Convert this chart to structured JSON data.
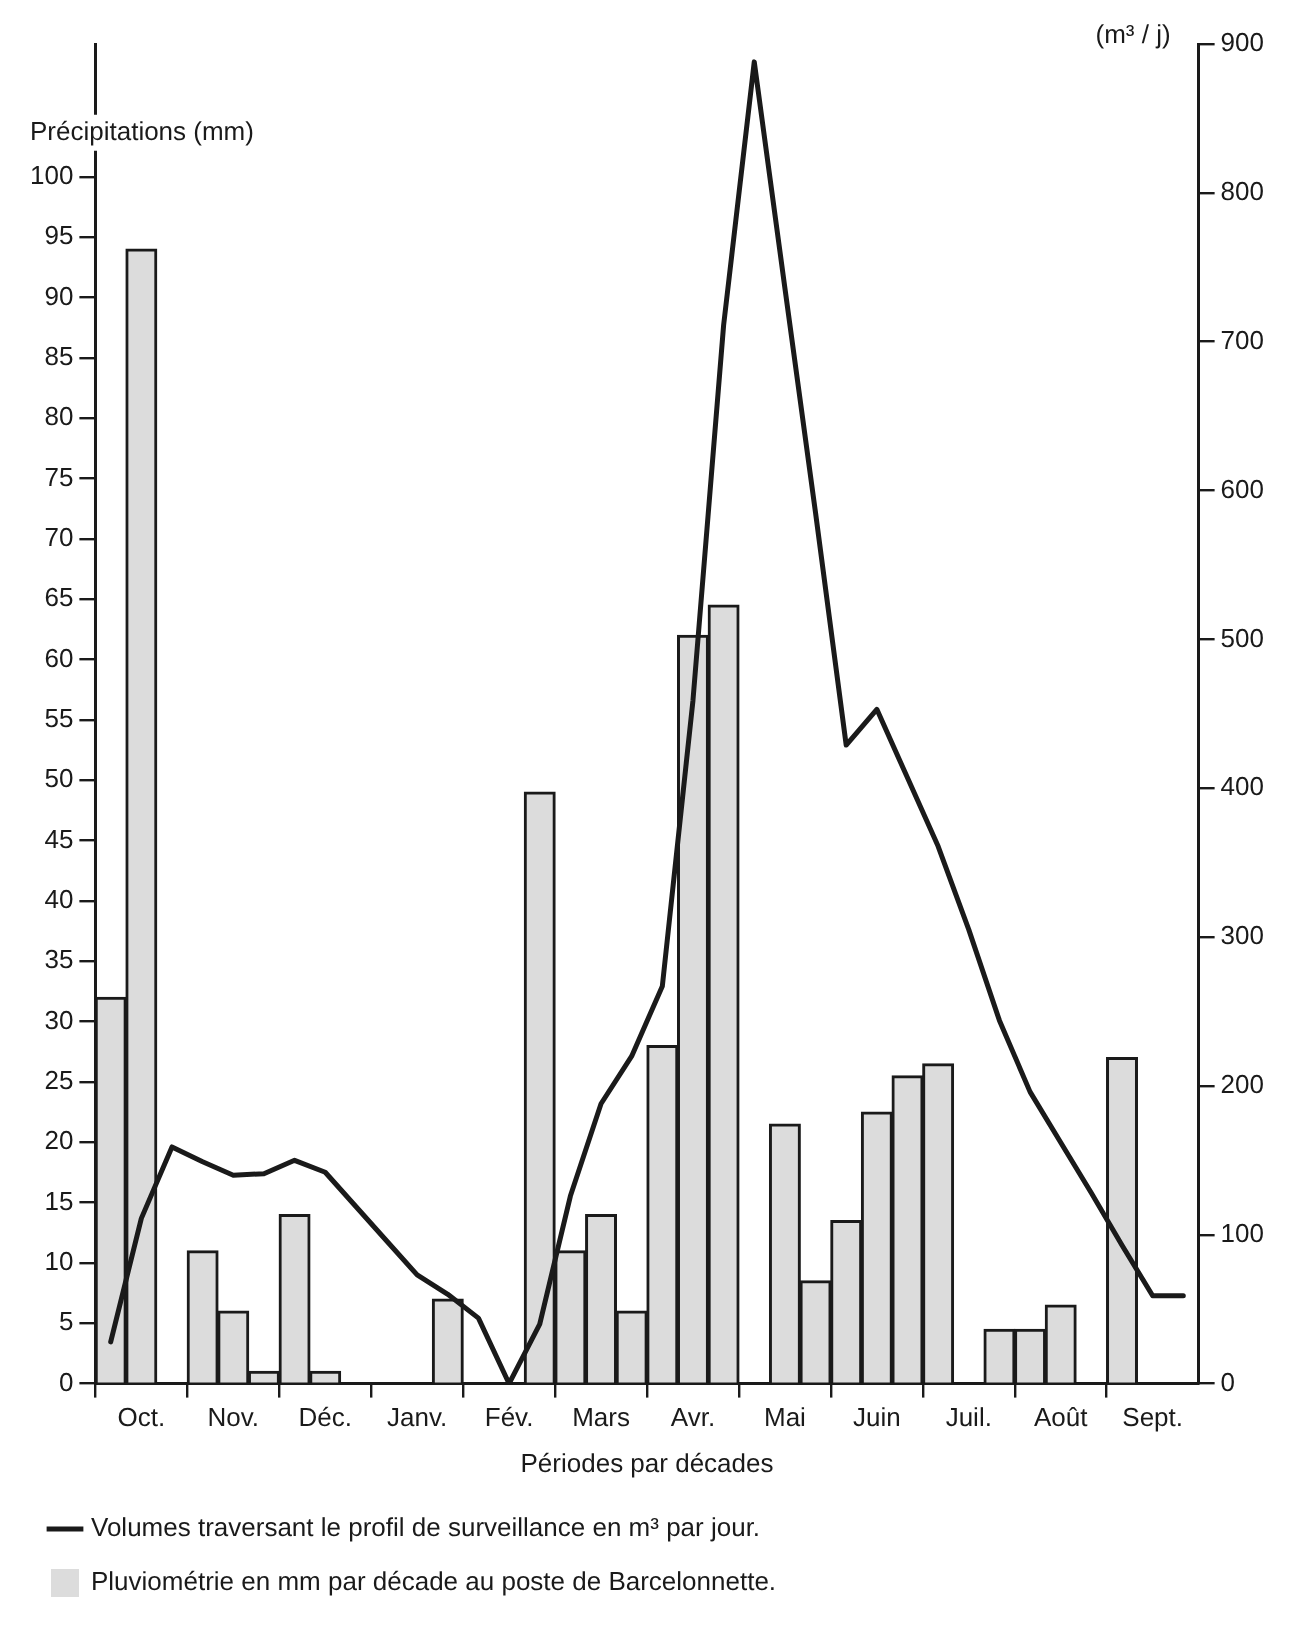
{
  "chart_data": {
    "type": "bar",
    "xlabel": "Périodes par décades",
    "ylabel": "Précipitations (mm)",
    "y2label": "(m³ / j)",
    "categories": [
      null,
      "Oct.",
      null,
      null,
      "Nov.",
      null,
      null,
      "Déc.",
      null,
      null,
      "Janv.",
      null,
      null,
      "Fév.",
      null,
      null,
      "Mars",
      null,
      null,
      "Avr.",
      null,
      null,
      "Mai",
      null,
      null,
      "Juin",
      null,
      null,
      "Juil.",
      null,
      null,
      "Août",
      null,
      null,
      "Sept.",
      null
    ],
    "ylim": [
      0,
      111
    ],
    "yticks": [
      0,
      5,
      10,
      15,
      20,
      25,
      30,
      35,
      40,
      45,
      50,
      55,
      60,
      65,
      70,
      75,
      80,
      85,
      90,
      95,
      100
    ],
    "y2lim": [
      0,
      900
    ],
    "y2ticks": [
      0,
      100,
      200,
      300,
      400,
      500,
      600,
      700,
      800,
      900
    ],
    "grid": false,
    "legend": "bottom",
    "marker": "none",
    "line_style": "solid",
    "series": [
      {
        "name": "Volumes traversant le profil de surveillance en m³ par jour.",
        "type": "line",
        "axis": "y2",
        "color": "#1a1a1a",
        "values": [
          28,
          111,
          159,
          149,
          140,
          141,
          150,
          142,
          119,
          96,
          73,
          60,
          44,
          0,
          40,
          126,
          188,
          220,
          267,
          459,
          711,
          888,
          736,
          585,
          429,
          453,
          407,
          361,
          305,
          244,
          196,
          162,
          128,
          93,
          59,
          59
        ]
      },
      {
        "name": "Pluviométrie en mm par décade au poste de Barcelonnette.",
        "color": "#dcdcdc",
        "values": [
          32,
          94,
          0,
          11,
          6,
          1,
          14,
          1,
          0,
          0,
          0,
          7,
          0,
          0,
          49,
          11,
          14,
          6,
          28,
          62,
          64.5,
          0,
          21.5,
          8.5,
          13.5,
          22.5,
          25.5,
          26.5,
          0,
          4.5,
          4.5,
          6.5,
          0,
          27,
          0,
          0
        ]
      }
    ]
  }
}
